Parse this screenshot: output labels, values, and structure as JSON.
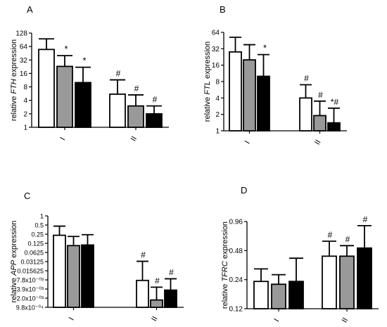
{
  "chart_data": [
    {
      "type": "bar",
      "panel_label": "A",
      "ylabel_prefix": "relative ",
      "ylabel_gene": "FTH",
      "ylabel_suffix": " expression",
      "scale": "log2",
      "ylim": [
        1,
        128
      ],
      "yticks": [
        1,
        2,
        4,
        8,
        16,
        32,
        64,
        128
      ],
      "ytick_labels": [
        "1",
        "2",
        "4",
        "8",
        "16",
        "32",
        "64",
        "128"
      ],
      "group_labels": [
        "I",
        "II"
      ],
      "bar_fills": [
        "#ffffff",
        "#999999",
        "#000000"
      ],
      "groups": [
        {
          "values": [
            55,
            23,
            10
          ],
          "errors": [
            95,
            40,
            22
          ],
          "marks": [
            "",
            "*",
            "*"
          ]
        },
        {
          "values": [
            5.5,
            3,
            2
          ],
          "errors": [
            11.5,
            5.3,
            3
          ],
          "marks": [
            "#",
            "#",
            "#"
          ]
        }
      ]
    },
    {
      "type": "bar",
      "panel_label": "B",
      "ylabel_prefix": "relative ",
      "ylabel_gene": "FTL",
      "ylabel_suffix": " expression",
      "scale": "log2",
      "ylim": [
        1,
        64
      ],
      "yticks": [
        1,
        2,
        4,
        8,
        16,
        32,
        64
      ],
      "ytick_labels": [
        "1",
        "2",
        "4",
        "8",
        "16",
        "32",
        "64"
      ],
      "group_labels": [
        "I",
        "II"
      ],
      "bar_fills": [
        "#ffffff",
        "#999999",
        "#000000"
      ],
      "groups": [
        {
          "values": [
            28,
            20,
            10
          ],
          "errors": [
            52,
            38,
            25
          ],
          "marks": [
            "",
            "",
            "*"
          ]
        },
        {
          "values": [
            4,
            1.9,
            1.4
          ],
          "errors": [
            7,
            3.5,
            2.6
          ],
          "marks": [
            "#",
            "#",
            "*#"
          ]
        }
      ]
    },
    {
      "type": "bar",
      "panel_label": "C",
      "ylabel_prefix": "relative ",
      "ylabel_gene": "APP",
      "ylabel_suffix": " expression",
      "scale": "log2",
      "ylim": [
        0.0009765625,
        1
      ],
      "yticks": [
        0.0009765625,
        0.001953125,
        0.00390625,
        0.0078125,
        0.015625,
        0.03125,
        0.0625,
        0.125,
        0.25,
        0.5,
        1
      ],
      "ytick_labels": [
        "9.8x10⁻⁰⁴",
        "2.0x10⁻⁰³",
        "3.9x10⁻⁰³",
        "7.8x10⁻⁰³",
        "0.015625",
        "0.03125",
        "0.0625",
        "0.125",
        "0.25",
        "0.5",
        "1"
      ],
      "group_labels": [
        "I",
        "II"
      ],
      "bar_fills": [
        "#ffffff",
        "#999999",
        "#000000"
      ],
      "groups": [
        {
          "values": [
            0.23,
            0.105,
            0.11
          ],
          "errors": [
            0.46,
            0.21,
            0.24
          ],
          "marks": [
            "",
            "",
            ""
          ]
        },
        {
          "values": [
            0.0075,
            0.0017,
            0.0036
          ],
          "errors": [
            0.032,
            0.0045,
            0.0085
          ],
          "marks": [
            "#",
            "#",
            "#"
          ]
        }
      ]
    },
    {
      "type": "bar",
      "panel_label": "D",
      "ylabel_prefix": "relative ",
      "ylabel_gene": "TFRC",
      "ylabel_suffix": " expression",
      "scale": "log2",
      "ylim": [
        0.12,
        0.96
      ],
      "yticks": [
        0.12,
        0.24,
        0.48,
        0.96
      ],
      "ytick_labels": [
        "0.12",
        "0.24",
        "0.48",
        "0.96"
      ],
      "group_labels": [
        "I",
        "II"
      ],
      "bar_fills": [
        "#ffffff",
        "#999999",
        "#000000"
      ],
      "groups": [
        {
          "values": [
            0.23,
            0.215,
            0.23
          ],
          "errors": [
            0.31,
            0.27,
            0.4
          ],
          "marks": [
            "",
            "",
            ""
          ]
        },
        {
          "values": [
            0.42,
            0.42,
            0.51
          ],
          "errors": [
            0.6,
            0.54,
            0.87
          ],
          "marks": [
            "#",
            "#",
            "#"
          ]
        }
      ]
    }
  ]
}
